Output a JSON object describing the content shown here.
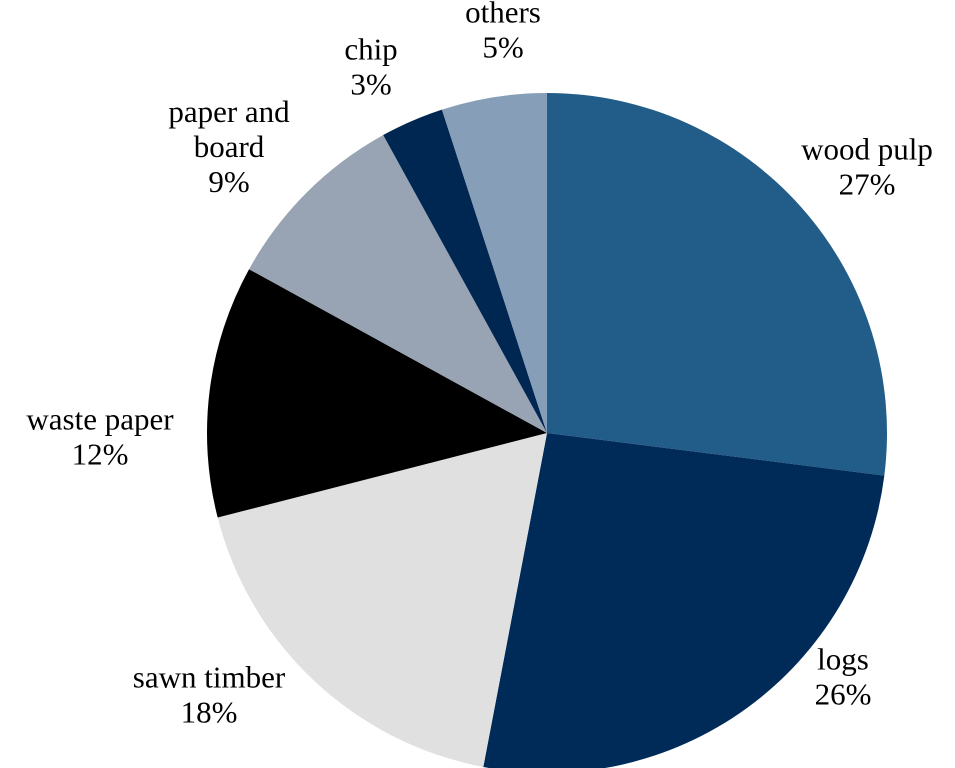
{
  "chart_data": {
    "type": "pie",
    "title": "",
    "start": "12 o'clock",
    "direction": "clockwise",
    "slices": [
      {
        "label_lines": [
          "wood pulp"
        ],
        "percent_label": "27%",
        "value": 27,
        "color": "#215d88"
      },
      {
        "label_lines": [
          "logs"
        ],
        "percent_label": "26%",
        "value": 26,
        "color": "#002b58"
      },
      {
        "label_lines": [
          "sawn timber"
        ],
        "percent_label": "18%",
        "value": 18,
        "color": "#e0e0e0"
      },
      {
        "label_lines": [
          "waste paper"
        ],
        "percent_label": "12%",
        "value": 12,
        "color": "#000000"
      },
      {
        "label_lines": [
          "paper and",
          "board"
        ],
        "percent_label": "9%",
        "value": 9,
        "color": "#98a4b3"
      },
      {
        "label_lines": [
          "chip"
        ],
        "percent_label": "3%",
        "value": 3,
        "color": "#002652"
      },
      {
        "label_lines": [
          "others"
        ],
        "percent_label": "5%",
        "value": 5,
        "color": "#879eb8"
      }
    ]
  }
}
